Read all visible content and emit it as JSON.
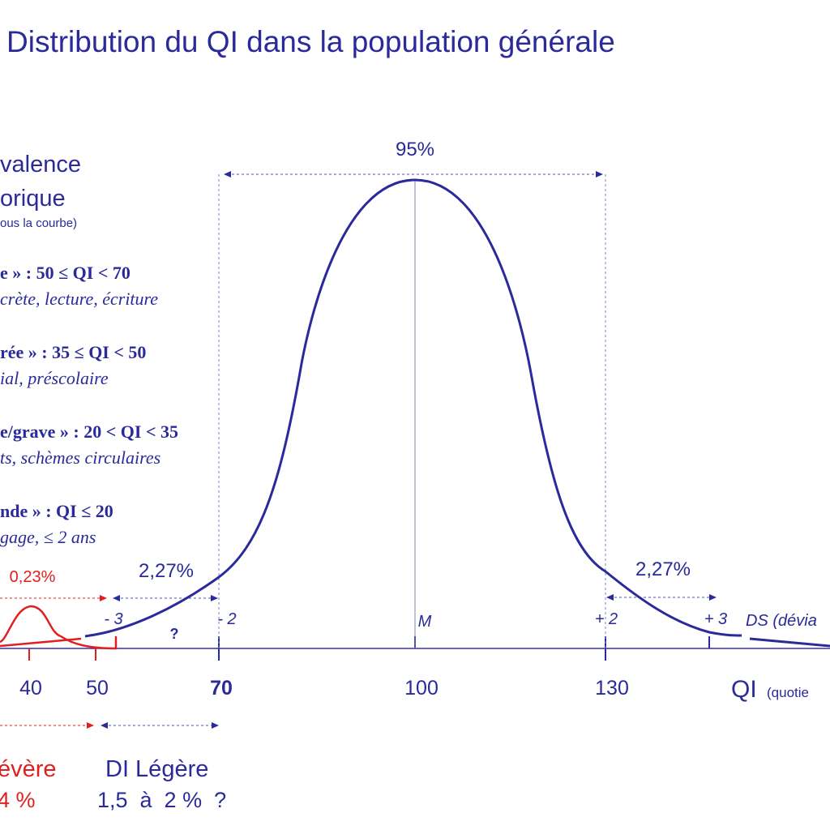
{
  "title": "Distribution du QI dans la population générale",
  "legend": {
    "heading_line1": "valence",
    "heading_line2": "orique",
    "heading_note": "ous la courbe)",
    "items": [
      {
        "range": "e » : 50 ≤ QI < 70",
        "desc": "crète, lecture, écriture"
      },
      {
        "range": "rée » : 35 ≤ QI < 50",
        "desc": "ial, préscolaire"
      },
      {
        "range": "e/grave » : 20 < QI < 35",
        "desc": "ts, schèmes circulaires"
      },
      {
        "range": "nde » : QI ≤ 20",
        "desc": "gage, ≤ 2 ans"
      }
    ]
  },
  "chart_data": {
    "type": "line",
    "x_ticks": [
      "40",
      "50",
      "70",
      "100",
      "130"
    ],
    "x_label": "QI",
    "x_label_note": "(quotie",
    "sd_labels": [
      "- 3",
      "- 2",
      "M",
      "+ 2",
      "+ 3"
    ],
    "sd_axis_label": "DS (dévia",
    "annotations": {
      "center_pct": "95%",
      "left_tail_pct": "2,27%",
      "right_tail_pct": "2,27%",
      "severe_pct": "0,23%",
      "question": "?"
    },
    "mean": 100,
    "sd": 15
  },
  "bottom": {
    "severe_label": "évère",
    "severe_value": "4 %",
    "light_label": "DI Légère",
    "light_value": "1,5  à  2 %  ?"
  },
  "colors": {
    "blue": "#2a2a9a",
    "red": "#e02020"
  }
}
